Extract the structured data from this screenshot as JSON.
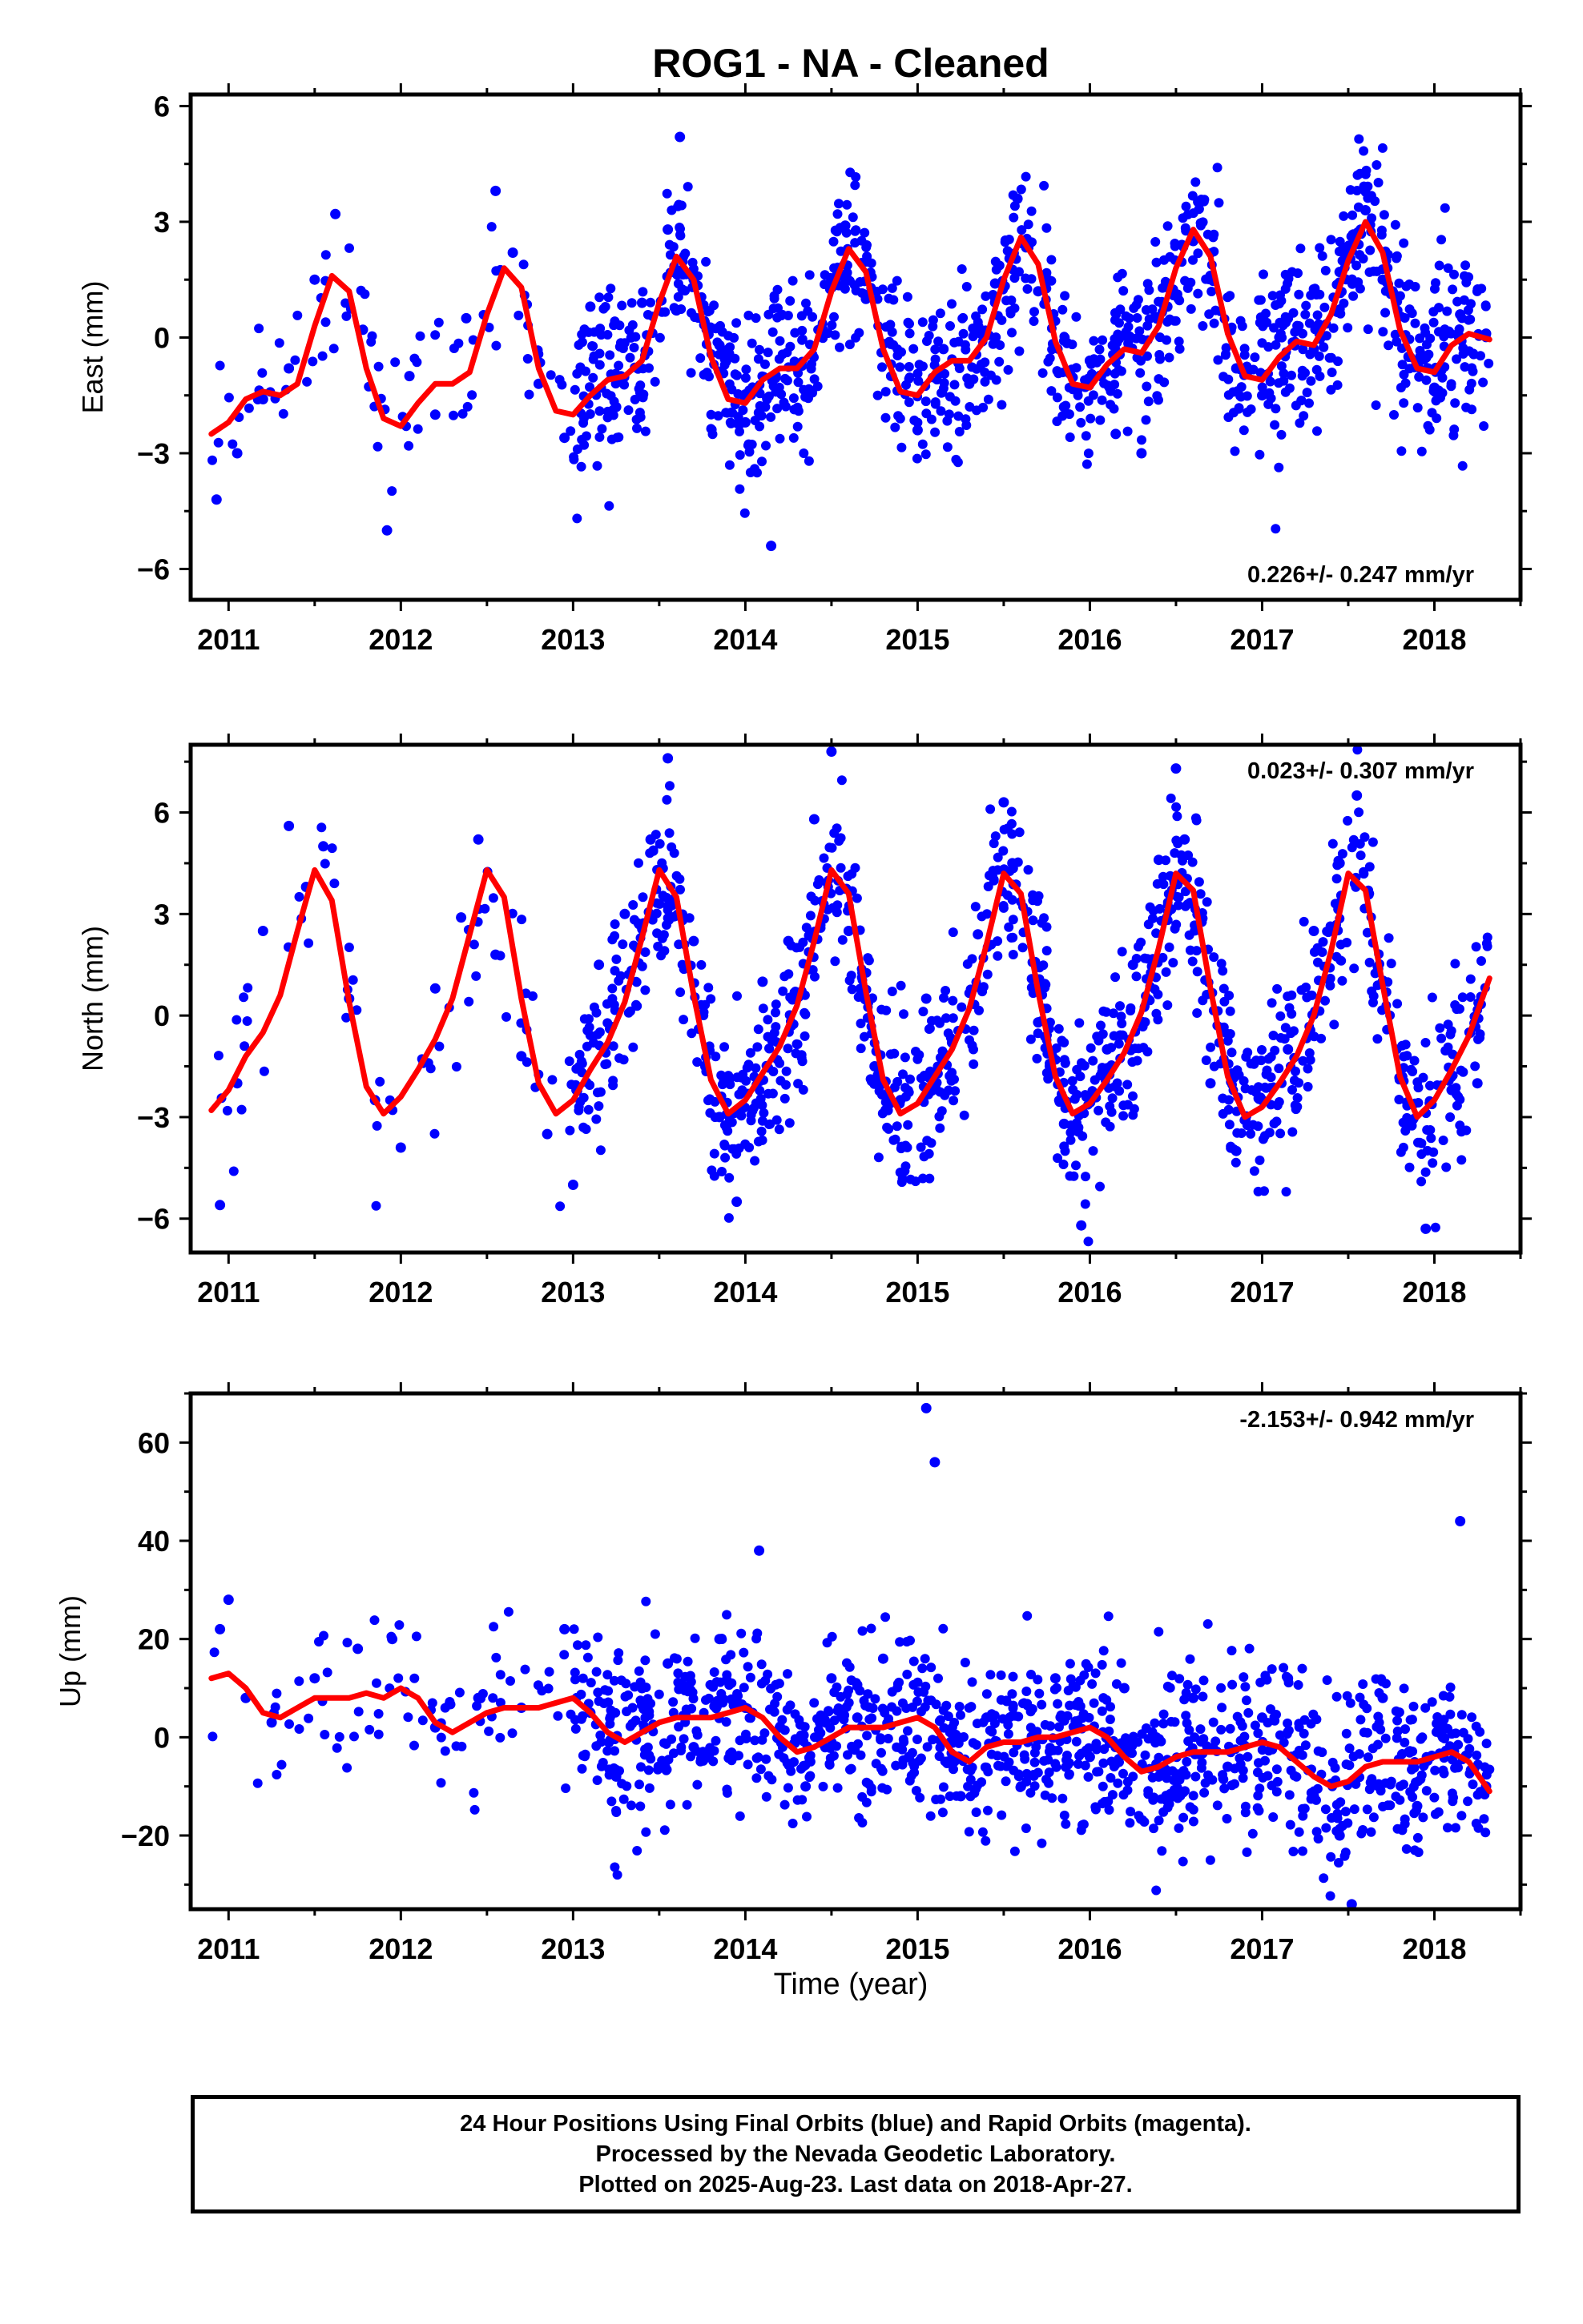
{
  "title": "ROG1  - NA - Cleaned",
  "xlabel": "Time (year)",
  "colors": {
    "points": "#0000ff",
    "fit": "#ff0000",
    "frame": "#000000"
  },
  "footer": {
    "line1": "24 Hour Positions Using Final Orbits (blue) and Rapid Orbits (magenta).",
    "line2": "Processed by the Nevada Geodetic Laboratory.",
    "line3": "Plotted on 2025-Aug-23. Last data on 2018-Apr-27."
  },
  "chart_data": [
    {
      "type": "scatter",
      "ylabel": "East (mm)",
      "xlim": [
        2010.78,
        2018.5
      ],
      "ylim": [
        -6.8,
        6.3
      ],
      "xticks": [
        2011,
        2012,
        2013,
        2014,
        2015,
        2016,
        2017,
        2018
      ],
      "yticks": [
        -6,
        -3,
        0,
        3,
        6
      ],
      "rate_label": "0.226+/- 0.247 mm/yr",
      "rate_label_position": "bottom-right",
      "data_start": 2010.9,
      "data_end": 2018.32,
      "series": [
        {
          "name": "Final Orbits",
          "kind": "points",
          "x": [
            2010.93,
            2011.05,
            2011.2,
            2011.35,
            2011.5,
            2011.62,
            2011.78,
            2011.92,
            2012.05,
            2012.2,
            2012.38,
            2012.55,
            2012.65,
            2012.8,
            2012.95,
            2013.1,
            2013.25,
            2013.4,
            2013.55,
            2013.62,
            2013.7,
            2013.85,
            2014.0,
            2014.15,
            2014.3,
            2014.45,
            2014.58,
            2014.7,
            2014.85,
            2015.0,
            2015.15,
            2015.3,
            2015.45,
            2015.58,
            2015.7,
            2015.85,
            2016.0,
            2016.15,
            2016.3,
            2016.45,
            2016.6,
            2016.7,
            2016.85,
            2017.0,
            2017.15,
            2017.3,
            2017.45,
            2017.6,
            2017.7,
            2017.85,
            2018.0,
            2018.15,
            2018.3
          ],
          "y": [
            -4.2,
            -3.0,
            -1.6,
            -0.8,
            1.5,
            3.2,
            0.2,
            -5.0,
            -1.0,
            -2.0,
            0.5,
            3.8,
            2.2,
            -1.2,
            -2.6,
            0.8,
            -1.8,
            0.9,
            2.8,
            5.2,
            1.5,
            -0.2,
            -2.2,
            -5.4,
            -0.8,
            0.2,
            2.9,
            1.0,
            -1.0,
            -2.4,
            -0.3,
            -1.2,
            1.4,
            3.6,
            1.2,
            -1.8,
            -0.6,
            -2.5,
            -3.0,
            0.8,
            2.5,
            1.6,
            -0.8,
            -1.5,
            0.5,
            -0.3,
            1.7,
            3.3,
            1.5,
            -0.5,
            -1.3,
            0.6,
            0.1
          ]
        },
        {
          "name": "Fit",
          "kind": "line",
          "x": [
            2010.9,
            2011.0,
            2011.1,
            2011.2,
            2011.3,
            2011.4,
            2011.5,
            2011.6,
            2011.7,
            2011.8,
            2011.9,
            2012.0,
            2012.1,
            2012.2,
            2012.3,
            2012.4,
            2012.5,
            2012.6,
            2012.7,
            2012.8,
            2012.9,
            2013.0,
            2013.1,
            2013.2,
            2013.3,
            2013.4,
            2013.5,
            2013.6,
            2013.7,
            2013.8,
            2013.9,
            2014.0,
            2014.1,
            2014.2,
            2014.3,
            2014.4,
            2014.5,
            2014.6,
            2014.7,
            2014.8,
            2014.9,
            2015.0,
            2015.1,
            2015.2,
            2015.3,
            2015.4,
            2015.5,
            2015.6,
            2015.7,
            2015.8,
            2015.9,
            2016.0,
            2016.1,
            2016.2,
            2016.3,
            2016.4,
            2016.5,
            2016.6,
            2016.7,
            2016.8,
            2016.9,
            2017.0,
            2017.1,
            2017.2,
            2017.3,
            2017.4,
            2017.5,
            2017.6,
            2017.7,
            2017.8,
            2017.9,
            2018.0,
            2018.1,
            2018.2,
            2018.32
          ],
          "y": [
            -2.5,
            -2.2,
            -1.6,
            -1.4,
            -1.5,
            -1.2,
            0.3,
            1.6,
            1.2,
            -0.8,
            -2.1,
            -2.3,
            -1.7,
            -1.2,
            -1.2,
            -0.9,
            0.6,
            1.8,
            1.3,
            -0.8,
            -1.9,
            -2.0,
            -1.5,
            -1.1,
            -1.0,
            -0.6,
            0.9,
            2.1,
            1.5,
            -0.5,
            -1.6,
            -1.7,
            -1.1,
            -0.8,
            -0.8,
            -0.3,
            1.2,
            2.3,
            1.7,
            -0.3,
            -1.4,
            -1.5,
            -0.9,
            -0.6,
            -0.6,
            0.0,
            1.5,
            2.6,
            1.9,
            -0.1,
            -1.2,
            -1.3,
            -0.7,
            -0.3,
            -0.4,
            0.3,
            1.8,
            2.8,
            2.1,
            0.1,
            -1.0,
            -1.1,
            -0.5,
            -0.1,
            -0.2,
            0.6,
            2.0,
            3.0,
            2.2,
            0.2,
            -0.8,
            -0.9,
            -0.2,
            0.1,
            -0.05
          ]
        }
      ]
    },
    {
      "type": "scatter",
      "ylabel": "North (mm)",
      "xlim": [
        2010.78,
        2018.5
      ],
      "ylim": [
        -7.0,
        8.0
      ],
      "xticks": [
        2011,
        2012,
        2013,
        2014,
        2015,
        2016,
        2017,
        2018
      ],
      "yticks": [
        -6,
        -3,
        0,
        3,
        6
      ],
      "rate_label": "0.023+/- 0.307 mm/yr",
      "rate_label_position": "top-right",
      "data_start": 2010.9,
      "data_end": 2018.32,
      "series": [
        {
          "name": "Final Orbits",
          "kind": "points",
          "x": [
            2010.95,
            2011.05,
            2011.2,
            2011.35,
            2011.45,
            2011.55,
            2011.7,
            2011.85,
            2012.0,
            2012.2,
            2012.35,
            2012.45,
            2012.55,
            2012.7,
            2012.85,
            2013.0,
            2013.15,
            2013.3,
            2013.45,
            2013.55,
            2013.7,
            2013.85,
            2013.95,
            2014.1,
            2014.25,
            2014.4,
            2014.5,
            2014.6,
            2014.75,
            2014.9,
            2015.05,
            2015.2,
            2015.35,
            2015.5,
            2015.55,
            2015.7,
            2015.85,
            2015.95,
            2016.1,
            2016.25,
            2016.4,
            2016.5,
            2016.55,
            2016.7,
            2016.85,
            2017.0,
            2017.15,
            2017.3,
            2017.45,
            2017.55,
            2017.7,
            2017.85,
            2017.95,
            2018.1,
            2018.25
          ],
          "y": [
            -5.6,
            -2.0,
            2.5,
            5.6,
            3.8,
            5.0,
            0.5,
            -2.5,
            -3.9,
            0.8,
            2.9,
            5.2,
            1.8,
            -1.2,
            -3.5,
            -5.0,
            1.5,
            3.0,
            5.2,
            7.6,
            2.2,
            -3.0,
            -5.5,
            1.0,
            2.2,
            5.8,
            7.8,
            2.5,
            -1.5,
            -2.5,
            0.5,
            -0.8,
            2.4,
            6.3,
            4.5,
            -0.2,
            -3.2,
            -6.2,
            -1.0,
            1.5,
            4.6,
            7.3,
            5.2,
            -2.0,
            -4.0,
            -2.5,
            -1.0,
            2.5,
            4.5,
            6.5,
            1.0,
            -3.2,
            -6.3,
            -2.2,
            -2.0
          ]
        },
        {
          "name": "Fit",
          "kind": "line",
          "x": [
            2010.9,
            2011.0,
            2011.1,
            2011.2,
            2011.3,
            2011.4,
            2011.5,
            2011.6,
            2011.7,
            2011.8,
            2011.9,
            2012.0,
            2012.1,
            2012.2,
            2012.3,
            2012.4,
            2012.5,
            2012.6,
            2012.7,
            2012.8,
            2012.9,
            2013.0,
            2013.1,
            2013.2,
            2013.3,
            2013.4,
            2013.5,
            2013.6,
            2013.7,
            2013.8,
            2013.9,
            2014.0,
            2014.1,
            2014.2,
            2014.3,
            2014.4,
            2014.5,
            2014.6,
            2014.7,
            2014.8,
            2014.9,
            2015.0,
            2015.1,
            2015.2,
            2015.3,
            2015.4,
            2015.5,
            2015.6,
            2015.7,
            2015.8,
            2015.9,
            2016.0,
            2016.1,
            2016.2,
            2016.3,
            2016.4,
            2016.5,
            2016.6,
            2016.7,
            2016.8,
            2016.9,
            2017.0,
            2017.1,
            2017.2,
            2017.3,
            2017.4,
            2017.5,
            2017.6,
            2017.7,
            2017.8,
            2017.9,
            2018.0,
            2018.1,
            2018.2,
            2018.32
          ],
          "y": [
            -2.8,
            -2.2,
            -1.2,
            -0.5,
            0.6,
            2.5,
            4.3,
            3.4,
            0.4,
            -2.1,
            -2.9,
            -2.4,
            -1.6,
            -0.7,
            0.5,
            2.4,
            4.3,
            3.5,
            0.5,
            -2.0,
            -2.9,
            -2.5,
            -1.6,
            -0.8,
            0.4,
            2.3,
            4.3,
            3.5,
            0.6,
            -1.9,
            -2.9,
            -2.5,
            -1.7,
            -0.9,
            0.3,
            2.2,
            4.3,
            3.6,
            0.7,
            -1.9,
            -2.9,
            -2.6,
            -1.8,
            -1.0,
            0.2,
            2.1,
            4.2,
            3.6,
            0.7,
            -1.8,
            -2.9,
            -2.6,
            -1.9,
            -1.1,
            0.1,
            2.0,
            4.2,
            3.7,
            0.8,
            -1.8,
            -3.0,
            -2.7,
            -2.0,
            -1.2,
            0.0,
            1.9,
            4.2,
            3.7,
            0.9,
            -1.8,
            -3.0,
            -2.5,
            -1.6,
            -0.6,
            1.1
          ]
        }
      ]
    },
    {
      "type": "scatter",
      "ylabel": "Up (mm)",
      "xlim": [
        2010.78,
        2018.5
      ],
      "ylim": [
        -35,
        70
      ],
      "xticks": [
        2011,
        2012,
        2013,
        2014,
        2015,
        2016,
        2017,
        2018
      ],
      "yticks": [
        -20,
        0,
        20,
        40,
        60
      ],
      "rate_label": "-2.153+/- 0.942 mm/yr",
      "rate_label_position": "top-right",
      "data_start": 2010.9,
      "data_end": 2018.32,
      "series": [
        {
          "name": "Final Orbits",
          "kind": "points",
          "x": [
            2010.95,
            2011.0,
            2011.1,
            2011.25,
            2011.5,
            2011.75,
            2011.95,
            2012.2,
            2012.45,
            2012.7,
            2012.95,
            2013.1,
            2013.25,
            2013.4,
            2013.55,
            2013.7,
            2013.85,
            2014.0,
            2014.08,
            2014.2,
            2014.35,
            2014.5,
            2014.65,
            2014.8,
            2014.95,
            2015.05,
            2015.1,
            2015.25,
            2015.4,
            2015.6,
            2015.8,
            2016.0,
            2016.2,
            2016.4,
            2016.6,
            2016.8,
            2017.0,
            2017.15,
            2017.3,
            2017.45,
            2017.52,
            2017.7,
            2017.9,
            2018.05,
            2018.15,
            2018.3
          ],
          "y": [
            22,
            28,
            8,
            3,
            12,
            18,
            20,
            2,
            8,
            6,
            22,
            5,
            -8,
            10,
            15,
            -2,
            20,
            6,
            38,
            2,
            -10,
            12,
            4,
            16,
            -4,
            67,
            56,
            -12,
            4,
            -10,
            12,
            -4,
            10,
            -8,
            8,
            -6,
            4,
            12,
            -12,
            -20,
            -34,
            8,
            -14,
            0,
            44,
            -10
          ]
        },
        {
          "name": "Fit",
          "kind": "line",
          "x": [
            2010.9,
            2011.0,
            2011.1,
            2011.2,
            2011.3,
            2011.4,
            2011.5,
            2011.6,
            2011.7,
            2011.8,
            2011.9,
            2012.0,
            2012.1,
            2012.2,
            2012.3,
            2012.4,
            2012.5,
            2012.6,
            2012.7,
            2012.8,
            2012.9,
            2013.0,
            2013.1,
            2013.2,
            2013.3,
            2013.4,
            2013.5,
            2013.6,
            2013.7,
            2013.8,
            2013.9,
            2014.0,
            2014.1,
            2014.2,
            2014.3,
            2014.4,
            2014.5,
            2014.6,
            2014.7,
            2014.8,
            2014.9,
            2015.0,
            2015.1,
            2015.2,
            2015.3,
            2015.4,
            2015.5,
            2015.6,
            2015.7,
            2015.8,
            2015.9,
            2016.0,
            2016.1,
            2016.2,
            2016.3,
            2016.4,
            2016.5,
            2016.6,
            2016.7,
            2016.8,
            2016.9,
            2017.0,
            2017.1,
            2017.2,
            2017.3,
            2017.4,
            2017.5,
            2017.6,
            2017.7,
            2017.8,
            2017.9,
            2018.0,
            2018.1,
            2018.2,
            2018.32
          ],
          "y": [
            12,
            13,
            10,
            5,
            4,
            6,
            8,
            8,
            8,
            9,
            8,
            10,
            8,
            3,
            1,
            3,
            5,
            6,
            6,
            6,
            7,
            8,
            5,
            1,
            -1,
            1,
            3,
            4,
            4,
            4,
            5,
            6,
            4,
            0,
            -3,
            -2,
            0,
            2,
            2,
            2,
            3,
            4,
            2,
            -3,
            -5,
            -2,
            -1,
            -1,
            0,
            0,
            1,
            2,
            0,
            -4,
            -7,
            -6,
            -4,
            -3,
            -3,
            -3,
            -2,
            -1,
            -2,
            -5,
            -8,
            -10,
            -9,
            -6,
            -5,
            -5,
            -5,
            -4,
            -3,
            -5,
            -11
          ]
        }
      ]
    }
  ]
}
